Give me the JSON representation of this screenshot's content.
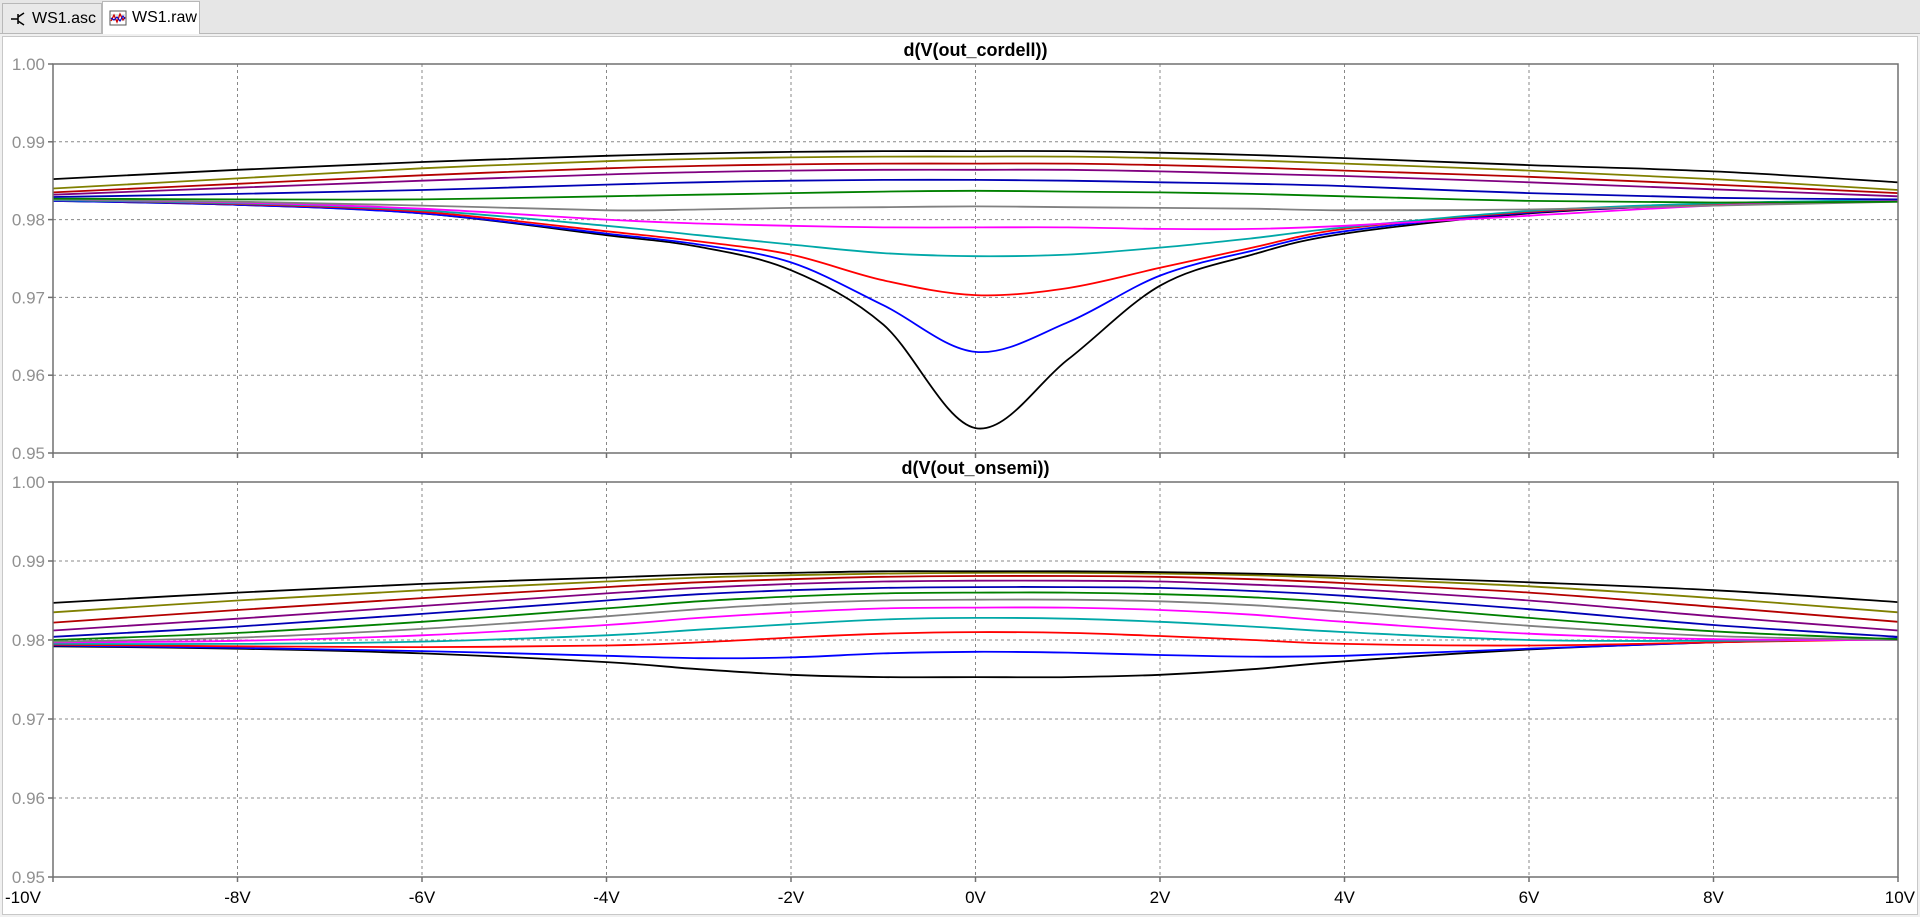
{
  "tabs": [
    {
      "label": "WS1.asc",
      "icon": "schematic-icon",
      "active": false
    },
    {
      "label": "WS1.raw",
      "icon": "waveform-icon",
      "active": true
    }
  ],
  "chart_data": [
    {
      "type": "line",
      "title": "d(V(out_cordell))",
      "xlim": [
        -10,
        10
      ],
      "ylim": [
        0.95,
        1.0
      ],
      "x_ticks": [
        -10,
        -8,
        -6,
        -4,
        -2,
        0,
        2,
        4,
        6,
        8,
        10
      ],
      "x_tick_labels": [
        "-10V",
        "-8V",
        "-6V",
        "-4V",
        "-2V",
        "0V",
        "2V",
        "4V",
        "6V",
        "8V",
        "10V"
      ],
      "y_ticks": [
        0.95,
        0.96,
        0.97,
        0.98,
        0.99,
        1.0
      ],
      "y_tick_labels": [
        "0.95",
        "0.96",
        "0.97",
        "0.98",
        "0.99",
        "1.00"
      ],
      "grid": true,
      "x": [
        -10,
        -8,
        -6,
        -4,
        -3,
        -2,
        -1,
        0,
        1,
        2,
        3,
        4,
        6,
        8,
        10
      ],
      "series": [
        {
          "color": "#000000",
          "values": [
            0.9824,
            0.9819,
            0.9808,
            0.978,
            0.9765,
            0.9735,
            0.9665,
            0.9532,
            0.962,
            0.9715,
            0.9755,
            0.9782,
            0.9808,
            0.9819,
            0.9824
          ]
        },
        {
          "color": "#0000ff",
          "values": [
            0.9824,
            0.9819,
            0.9808,
            0.9782,
            0.9768,
            0.9745,
            0.969,
            0.963,
            0.9668,
            0.9728,
            0.976,
            0.9785,
            0.9809,
            0.9819,
            0.9824
          ]
        },
        {
          "color": "#ff0000",
          "values": [
            0.9825,
            0.982,
            0.981,
            0.9785,
            0.9772,
            0.9755,
            0.9722,
            0.9703,
            0.9712,
            0.9738,
            0.9764,
            0.9788,
            0.981,
            0.982,
            0.9825
          ]
        },
        {
          "color": "#00a8a8",
          "values": [
            0.9825,
            0.9821,
            0.9812,
            0.9792,
            0.978,
            0.9768,
            0.9757,
            0.9753,
            0.9755,
            0.9764,
            0.9776,
            0.979,
            0.9811,
            0.9821,
            0.9825
          ]
        },
        {
          "color": "#ff00ff",
          "values": [
            0.9826,
            0.9822,
            0.9814,
            0.98,
            0.9795,
            0.9792,
            0.979,
            0.979,
            0.979,
            0.9788,
            0.9788,
            0.9792,
            0.9805,
            0.9818,
            0.9824
          ]
        },
        {
          "color": "#808080",
          "values": [
            0.9826,
            0.9823,
            0.9818,
            0.9812,
            0.9813,
            0.9815,
            0.9816,
            0.9817,
            0.9816,
            0.9815,
            0.9814,
            0.9812,
            0.9813,
            0.9818,
            0.9823
          ]
        },
        {
          "color": "#008000",
          "values": [
            0.9827,
            0.9826,
            0.9826,
            0.983,
            0.9832,
            0.9834,
            0.9836,
            0.9837,
            0.9836,
            0.9835,
            0.9833,
            0.983,
            0.9824,
            0.9822,
            0.9823
          ]
        },
        {
          "color": "#0000b4",
          "values": [
            0.9829,
            0.9833,
            0.9838,
            0.9845,
            0.9848,
            0.985,
            0.9851,
            0.9851,
            0.985,
            0.9848,
            0.9846,
            0.9843,
            0.9834,
            0.9828,
            0.9826
          ]
        },
        {
          "color": "#800080",
          "values": [
            0.9832,
            0.9841,
            0.985,
            0.9858,
            0.9861,
            0.9863,
            0.9864,
            0.9864,
            0.9864,
            0.9862,
            0.9859,
            0.9856,
            0.9848,
            0.9839,
            0.983
          ]
        },
        {
          "color": "#b40000",
          "values": [
            0.9835,
            0.9846,
            0.9857,
            0.9866,
            0.9869,
            0.9871,
            0.9872,
            0.9872,
            0.9872,
            0.987,
            0.9867,
            0.9863,
            0.9855,
            0.9845,
            0.9834
          ]
        },
        {
          "color": "#808000",
          "values": [
            0.984,
            0.9853,
            0.9866,
            0.9875,
            0.9878,
            0.988,
            0.9881,
            0.9881,
            0.9881,
            0.9879,
            0.9876,
            0.9872,
            0.9863,
            0.9852,
            0.9838
          ]
        },
        {
          "color": "#000000",
          "values": [
            0.9852,
            0.9864,
            0.9874,
            0.9882,
            0.9885,
            0.9887,
            0.9888,
            0.9888,
            0.9888,
            0.9886,
            0.9883,
            0.9879,
            0.987,
            0.9862,
            0.9848
          ]
        }
      ]
    },
    {
      "type": "line",
      "title": "d(V(out_onsemi))",
      "xlim": [
        -10,
        10
      ],
      "ylim": [
        0.95,
        1.0
      ],
      "x_ticks": [
        -10,
        -8,
        -6,
        -4,
        -2,
        0,
        2,
        4,
        6,
        8,
        10
      ],
      "x_tick_labels": [
        "-10V",
        "-8V",
        "-6V",
        "-4V",
        "-2V",
        "0V",
        "2V",
        "4V",
        "6V",
        "8V",
        "10V"
      ],
      "y_ticks": [
        0.95,
        0.96,
        0.97,
        0.98,
        0.99,
        1.0
      ],
      "y_tick_labels": [
        "0.95",
        "0.96",
        "0.97",
        "0.98",
        "0.99",
        "1.00"
      ],
      "grid": true,
      "x": [
        -10,
        -8,
        -6,
        -4,
        -3,
        -2,
        -1,
        0,
        1,
        2,
        3,
        4,
        6,
        8,
        10
      ],
      "series": [
        {
          "color": "#000000",
          "values": [
            0.9792,
            0.9789,
            0.9783,
            0.9772,
            0.9763,
            0.9756,
            0.9753,
            0.9753,
            0.9753,
            0.9756,
            0.9763,
            0.9773,
            0.9788,
            0.9797,
            0.9802
          ]
        },
        {
          "color": "#0000ff",
          "values": [
            0.9793,
            0.979,
            0.9786,
            0.978,
            0.9777,
            0.9778,
            0.9783,
            0.9785,
            0.9784,
            0.9781,
            0.9779,
            0.978,
            0.9789,
            0.9797,
            0.9802
          ]
        },
        {
          "color": "#ff0000",
          "values": [
            0.9794,
            0.9792,
            0.9791,
            0.9793,
            0.9797,
            0.9803,
            0.9808,
            0.981,
            0.9809,
            0.9805,
            0.98,
            0.9795,
            0.9793,
            0.9797,
            0.9801
          ]
        },
        {
          "color": "#00a8a8",
          "values": [
            0.9795,
            0.9795,
            0.9798,
            0.9806,
            0.9813,
            0.982,
            0.9826,
            0.9828,
            0.9827,
            0.9823,
            0.9817,
            0.981,
            0.98,
            0.9799,
            0.9801
          ]
        },
        {
          "color": "#ff00ff",
          "values": [
            0.9797,
            0.9799,
            0.9806,
            0.9819,
            0.9828,
            0.9835,
            0.984,
            0.9841,
            0.9841,
            0.9838,
            0.9832,
            0.9823,
            0.9808,
            0.9801,
            0.98
          ]
        },
        {
          "color": "#808080",
          "values": [
            0.9798,
            0.9803,
            0.9814,
            0.983,
            0.9839,
            0.9846,
            0.985,
            0.9851,
            0.9851,
            0.9849,
            0.9844,
            0.9836,
            0.9818,
            0.9805,
            0.98
          ]
        },
        {
          "color": "#008000",
          "values": [
            0.98,
            0.9809,
            0.9823,
            0.984,
            0.9849,
            0.9855,
            0.9859,
            0.986,
            0.986,
            0.9858,
            0.9854,
            0.9847,
            0.9828,
            0.9811,
            0.9801
          ]
        },
        {
          "color": "#0000b4",
          "values": [
            0.9804,
            0.9817,
            0.9833,
            0.985,
            0.9858,
            0.9863,
            0.9866,
            0.9867,
            0.9867,
            0.9866,
            0.9862,
            0.9856,
            0.9839,
            0.9819,
            0.9804
          ]
        },
        {
          "color": "#800080",
          "values": [
            0.9812,
            0.9827,
            0.9843,
            0.9859,
            0.9866,
            0.9871,
            0.9874,
            0.9875,
            0.9875,
            0.9874,
            0.987,
            0.9865,
            0.985,
            0.983,
            0.9812
          ]
        },
        {
          "color": "#b40000",
          "values": [
            0.9822,
            0.9838,
            0.9853,
            0.9867,
            0.9873,
            0.9877,
            0.988,
            0.9881,
            0.9881,
            0.988,
            0.9877,
            0.9872,
            0.986,
            0.9842,
            0.9823
          ]
        },
        {
          "color": "#808000",
          "values": [
            0.9835,
            0.985,
            0.9863,
            0.9874,
            0.9879,
            0.9882,
            0.9884,
            0.9885,
            0.9885,
            0.9884,
            0.9882,
            0.9878,
            0.9868,
            0.9853,
            0.9835
          ]
        },
        {
          "color": "#000000",
          "values": [
            0.9847,
            0.986,
            0.9871,
            0.9879,
            0.9883,
            0.9885,
            0.9887,
            0.9887,
            0.9887,
            0.9886,
            0.9884,
            0.9881,
            0.9873,
            0.9863,
            0.9848
          ]
        }
      ]
    }
  ]
}
